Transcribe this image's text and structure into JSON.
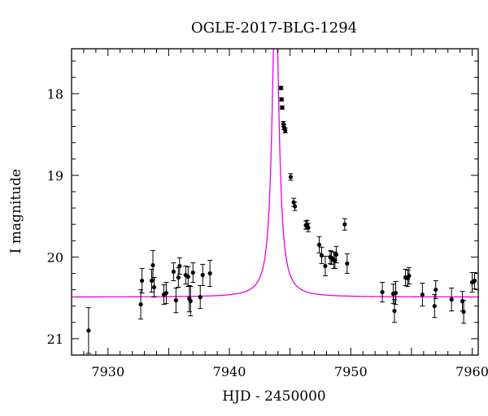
{
  "chart_data": {
    "type": "scatter",
    "title": "OGLE-2017-BLG-1294",
    "xlabel": "HJD - 2450000",
    "ylabel": "I magnitude",
    "xlim": [
      7927,
      7960.5
    ],
    "ylim": [
      21.2,
      17.45
    ],
    "y_inverted": true,
    "grid": false,
    "x_major_ticks": [
      7930,
      7940,
      7950,
      7960
    ],
    "x_tick_labels": [
      "7930",
      "7940",
      "7950",
      "7960"
    ],
    "y_major_ticks": [
      18,
      19,
      20,
      21
    ],
    "y_tick_labels": [
      "18",
      "19",
      "20",
      "21"
    ],
    "colors": {
      "points": "#000000",
      "model_curve": "#e600e6",
      "axes": "#000000"
    },
    "series": [
      {
        "kind": "points",
        "x": [
          7928.4,
          7932.7,
          7932.8,
          7933.6,
          7933.7,
          7933.8,
          7934.6,
          7934.8,
          7935.4,
          7935.6,
          7935.8,
          7935.9,
          7936.4,
          7936.6,
          7936.7,
          7936.8,
          7937.0,
          7937.6,
          7937.8,
          7938.4,
          7944.25,
          7944.3,
          7944.35,
          7944.45,
          7944.5,
          7944.6,
          7945.05,
          7945.3,
          7945.4,
          7946.3,
          7946.4,
          7946.5,
          7947.4,
          7947.6,
          7947.9,
          7948.3,
          7948.4,
          7948.6,
          7948.7,
          7948.8,
          7949.5,
          7949.7,
          7952.6,
          7953.5,
          7953.6,
          7953.7,
          7954.5,
          7954.7,
          7954.8,
          7955.9,
          7956.9,
          7957.0,
          7958.3,
          7959.2,
          7959.3,
          7960.0,
          7960.2
        ],
        "y": [
          20.9,
          20.58,
          20.29,
          20.29,
          20.1,
          20.37,
          20.46,
          20.44,
          20.18,
          20.53,
          20.25,
          20.11,
          20.22,
          20.24,
          20.51,
          20.54,
          20.19,
          20.49,
          20.22,
          20.2,
          17.93,
          18.07,
          18.17,
          18.37,
          18.41,
          18.45,
          19.02,
          19.33,
          19.38,
          19.61,
          19.6,
          19.64,
          19.85,
          19.98,
          20.11,
          20.0,
          20.01,
          20.04,
          20.04,
          19.97,
          19.6,
          20.08,
          20.43,
          20.45,
          20.66,
          20.44,
          20.25,
          20.26,
          20.23,
          20.46,
          20.6,
          20.4,
          20.52,
          20.54,
          20.67,
          20.31,
          20.29
        ],
        "yerr": [
          0.28,
          0.18,
          0.15,
          0.14,
          0.18,
          0.12,
          0.12,
          0.13,
          0.11,
          0.15,
          0.12,
          0.1,
          0.11,
          0.12,
          0.16,
          0.18,
          0.12,
          0.14,
          0.13,
          0.16,
          0.02,
          0.02,
          0.02,
          0.03,
          0.03,
          0.03,
          0.04,
          0.05,
          0.05,
          0.05,
          0.05,
          0.05,
          0.1,
          0.1,
          0.12,
          0.08,
          0.08,
          0.1,
          0.1,
          0.1,
          0.07,
          0.12,
          0.12,
          0.12,
          0.14,
          0.14,
          0.1,
          0.1,
          0.1,
          0.14,
          0.14,
          0.11,
          0.14,
          0.12,
          0.14,
          0.12,
          0.1
        ]
      },
      {
        "kind": "model",
        "peak_t": 7943.8,
        "baseline_mag": 20.49,
        "peak_mag": 16.6,
        "half_width": 0.33
      }
    ]
  }
}
